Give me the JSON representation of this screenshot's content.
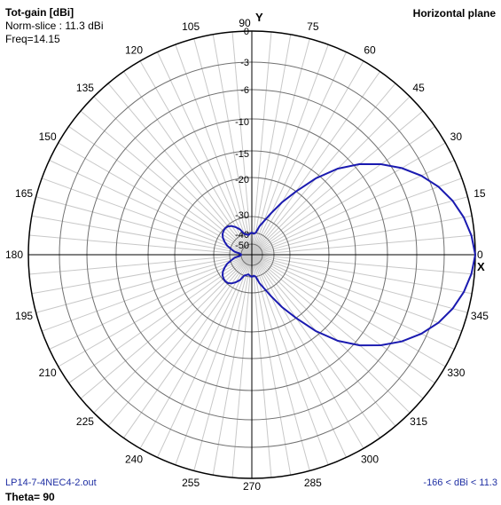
{
  "header": {
    "title": "Tot-gain [dBi]",
    "norm_slice": "Norm-slice : 11.3 dBi",
    "freq": "Freq=14.15",
    "plane": "Horizontal plane"
  },
  "footer": {
    "file": "LP14-7-4NEC4-2.out",
    "theta": "Theta= 90",
    "range": "-166 < dBi < 11.3"
  },
  "axes": {
    "x_label": "X",
    "y_label": "Y"
  },
  "colors": {
    "trace": "#1a1ab0",
    "grid": "#c8c8c8",
    "axis": "#000000",
    "ring": "#000000"
  },
  "chart_data": {
    "type": "line",
    "coordinate_system": "polar",
    "angle_labels": [
      "0",
      "15",
      "30",
      "45",
      "60",
      "75",
      "90",
      "105",
      "120",
      "135",
      "150",
      "165",
      "180",
      "195",
      "210",
      "225",
      "240",
      "255",
      "270",
      "285",
      "300",
      "315",
      "330",
      "345"
    ],
    "ring_labels": [
      "0",
      "-3",
      "-6",
      "-10",
      "-15",
      "-20",
      "-30",
      "-40",
      "-50"
    ],
    "ring_values_db": [
      0,
      -3,
      -6,
      -10,
      -15,
      -20,
      -30,
      -40,
      -50
    ],
    "series": [
      {
        "angle_deg": [
          0,
          5,
          10,
          15,
          20,
          25,
          30,
          35,
          40,
          45,
          50,
          55,
          60,
          65,
          70,
          75,
          80,
          85,
          90,
          95,
          100,
          105,
          110,
          115,
          120,
          125,
          130,
          135,
          140,
          145,
          150,
          155,
          160,
          165,
          170,
          175,
          180,
          185,
          190,
          195,
          200,
          205,
          210,
          215,
          220,
          225,
          230,
          235,
          240,
          245,
          250,
          255,
          260,
          265,
          270,
          275,
          280,
          285,
          290,
          295,
          300,
          305,
          310,
          315,
          320,
          325,
          330,
          335,
          340,
          345,
          350,
          355
        ],
        "gain_db": [
          0,
          -0.3,
          -0.8,
          -1.5,
          -2.4,
          -3.6,
          -5.1,
          -7,
          -9.3,
          -12.2,
          -15.8,
          -20,
          -24.3,
          -28,
          -31.5,
          -35.5,
          -40,
          -41,
          -40,
          -41,
          -42,
          -41,
          -40,
          -36.5,
          -34,
          -32,
          -30.7,
          -30.4,
          -30.7,
          -31.5,
          -33,
          -35.2,
          -37.5,
          -41,
          -44,
          -49,
          -50,
          -49,
          -44,
          -41,
          -37.5,
          -35.2,
          -33,
          -31.5,
          -30.7,
          -30.4,
          -30.7,
          -32,
          -34,
          -36.5,
          -40,
          -41,
          -42,
          -41,
          -40,
          -41,
          -40,
          -35.5,
          -31.5,
          -28,
          -24.3,
          -20,
          -15.8,
          -12.2,
          -9.3,
          -7,
          -5.1,
          -3.6,
          -2.4,
          -1.5,
          -0.8,
          -0.3
        ]
      }
    ]
  }
}
